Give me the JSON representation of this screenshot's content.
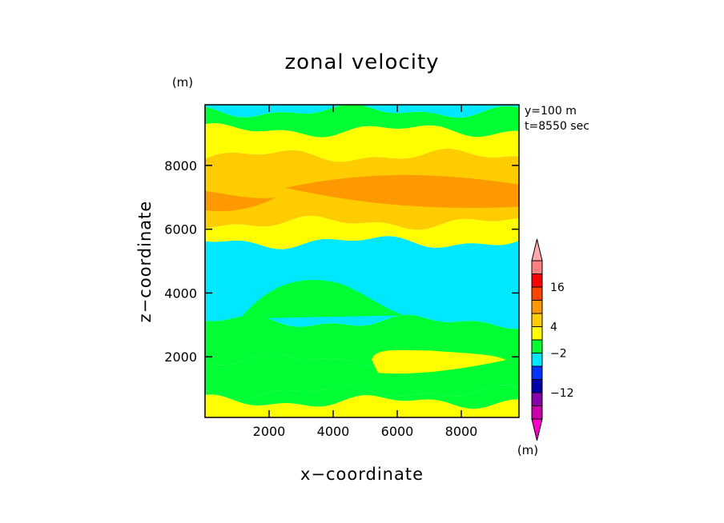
{
  "chart_data": {
    "type": "heatmap",
    "title": "zonal velocity",
    "xlabel": "x−coordinate",
    "ylabel": "z−coordinate",
    "y_unit": "(m)",
    "colorbar_unit": "(m)",
    "annotations": [
      "y=100 m",
      "t=8550 sec"
    ],
    "xlim": [
      0,
      9800
    ],
    "ylim": [
      100,
      9900
    ],
    "x_ticks": [
      2000,
      4000,
      6000,
      8000
    ],
    "y_ticks": [
      2000,
      4000,
      6000,
      8000
    ],
    "colorbar": {
      "levels": [
        -20,
        -16,
        -12,
        -8,
        -4,
        -2,
        2,
        4,
        8,
        12,
        16,
        20
      ],
      "colors": [
        "#cc00aa",
        "#8800aa",
        "#0000aa",
        "#0033ff",
        "#00e8ff",
        "#00ff33",
        "#ffff00",
        "#ffcc00",
        "#ff9900",
        "#ff4400",
        "#ff0000",
        "#ff8080"
      ],
      "over_color": "#ffaaaa",
      "under_color": "#ff00cc",
      "tick_labels": [
        "16",
        "4",
        "−2",
        "−12"
      ],
      "tick_label_levels": [
        16,
        4,
        -2,
        -12
      ]
    },
    "bands": [
      {
        "z0": 100,
        "z1": 600,
        "color": "#ffff00"
      },
      {
        "z0": 600,
        "z1": 900,
        "color": "#00ff33"
      },
      {
        "z0": 900,
        "z1": 1900,
        "color": "#00ff33"
      },
      {
        "z0": 1900,
        "z1": 3100,
        "color": "#00ff33"
      },
      {
        "z0": 3100,
        "z1": 5600,
        "color": "#00e8ff"
      },
      {
        "z0": 5600,
        "z1": 6200,
        "color": "#ffff00"
      },
      {
        "z0": 6200,
        "z1": 8300,
        "color": "#ffcc00"
      },
      {
        "z0": 8300,
        "z1": 9100,
        "color": "#ffff00"
      },
      {
        "z0": 9100,
        "z1": 9700,
        "color": "#00ff33"
      },
      {
        "z0": 9700,
        "z1": 9900,
        "color": "#00e8ff"
      }
    ]
  }
}
